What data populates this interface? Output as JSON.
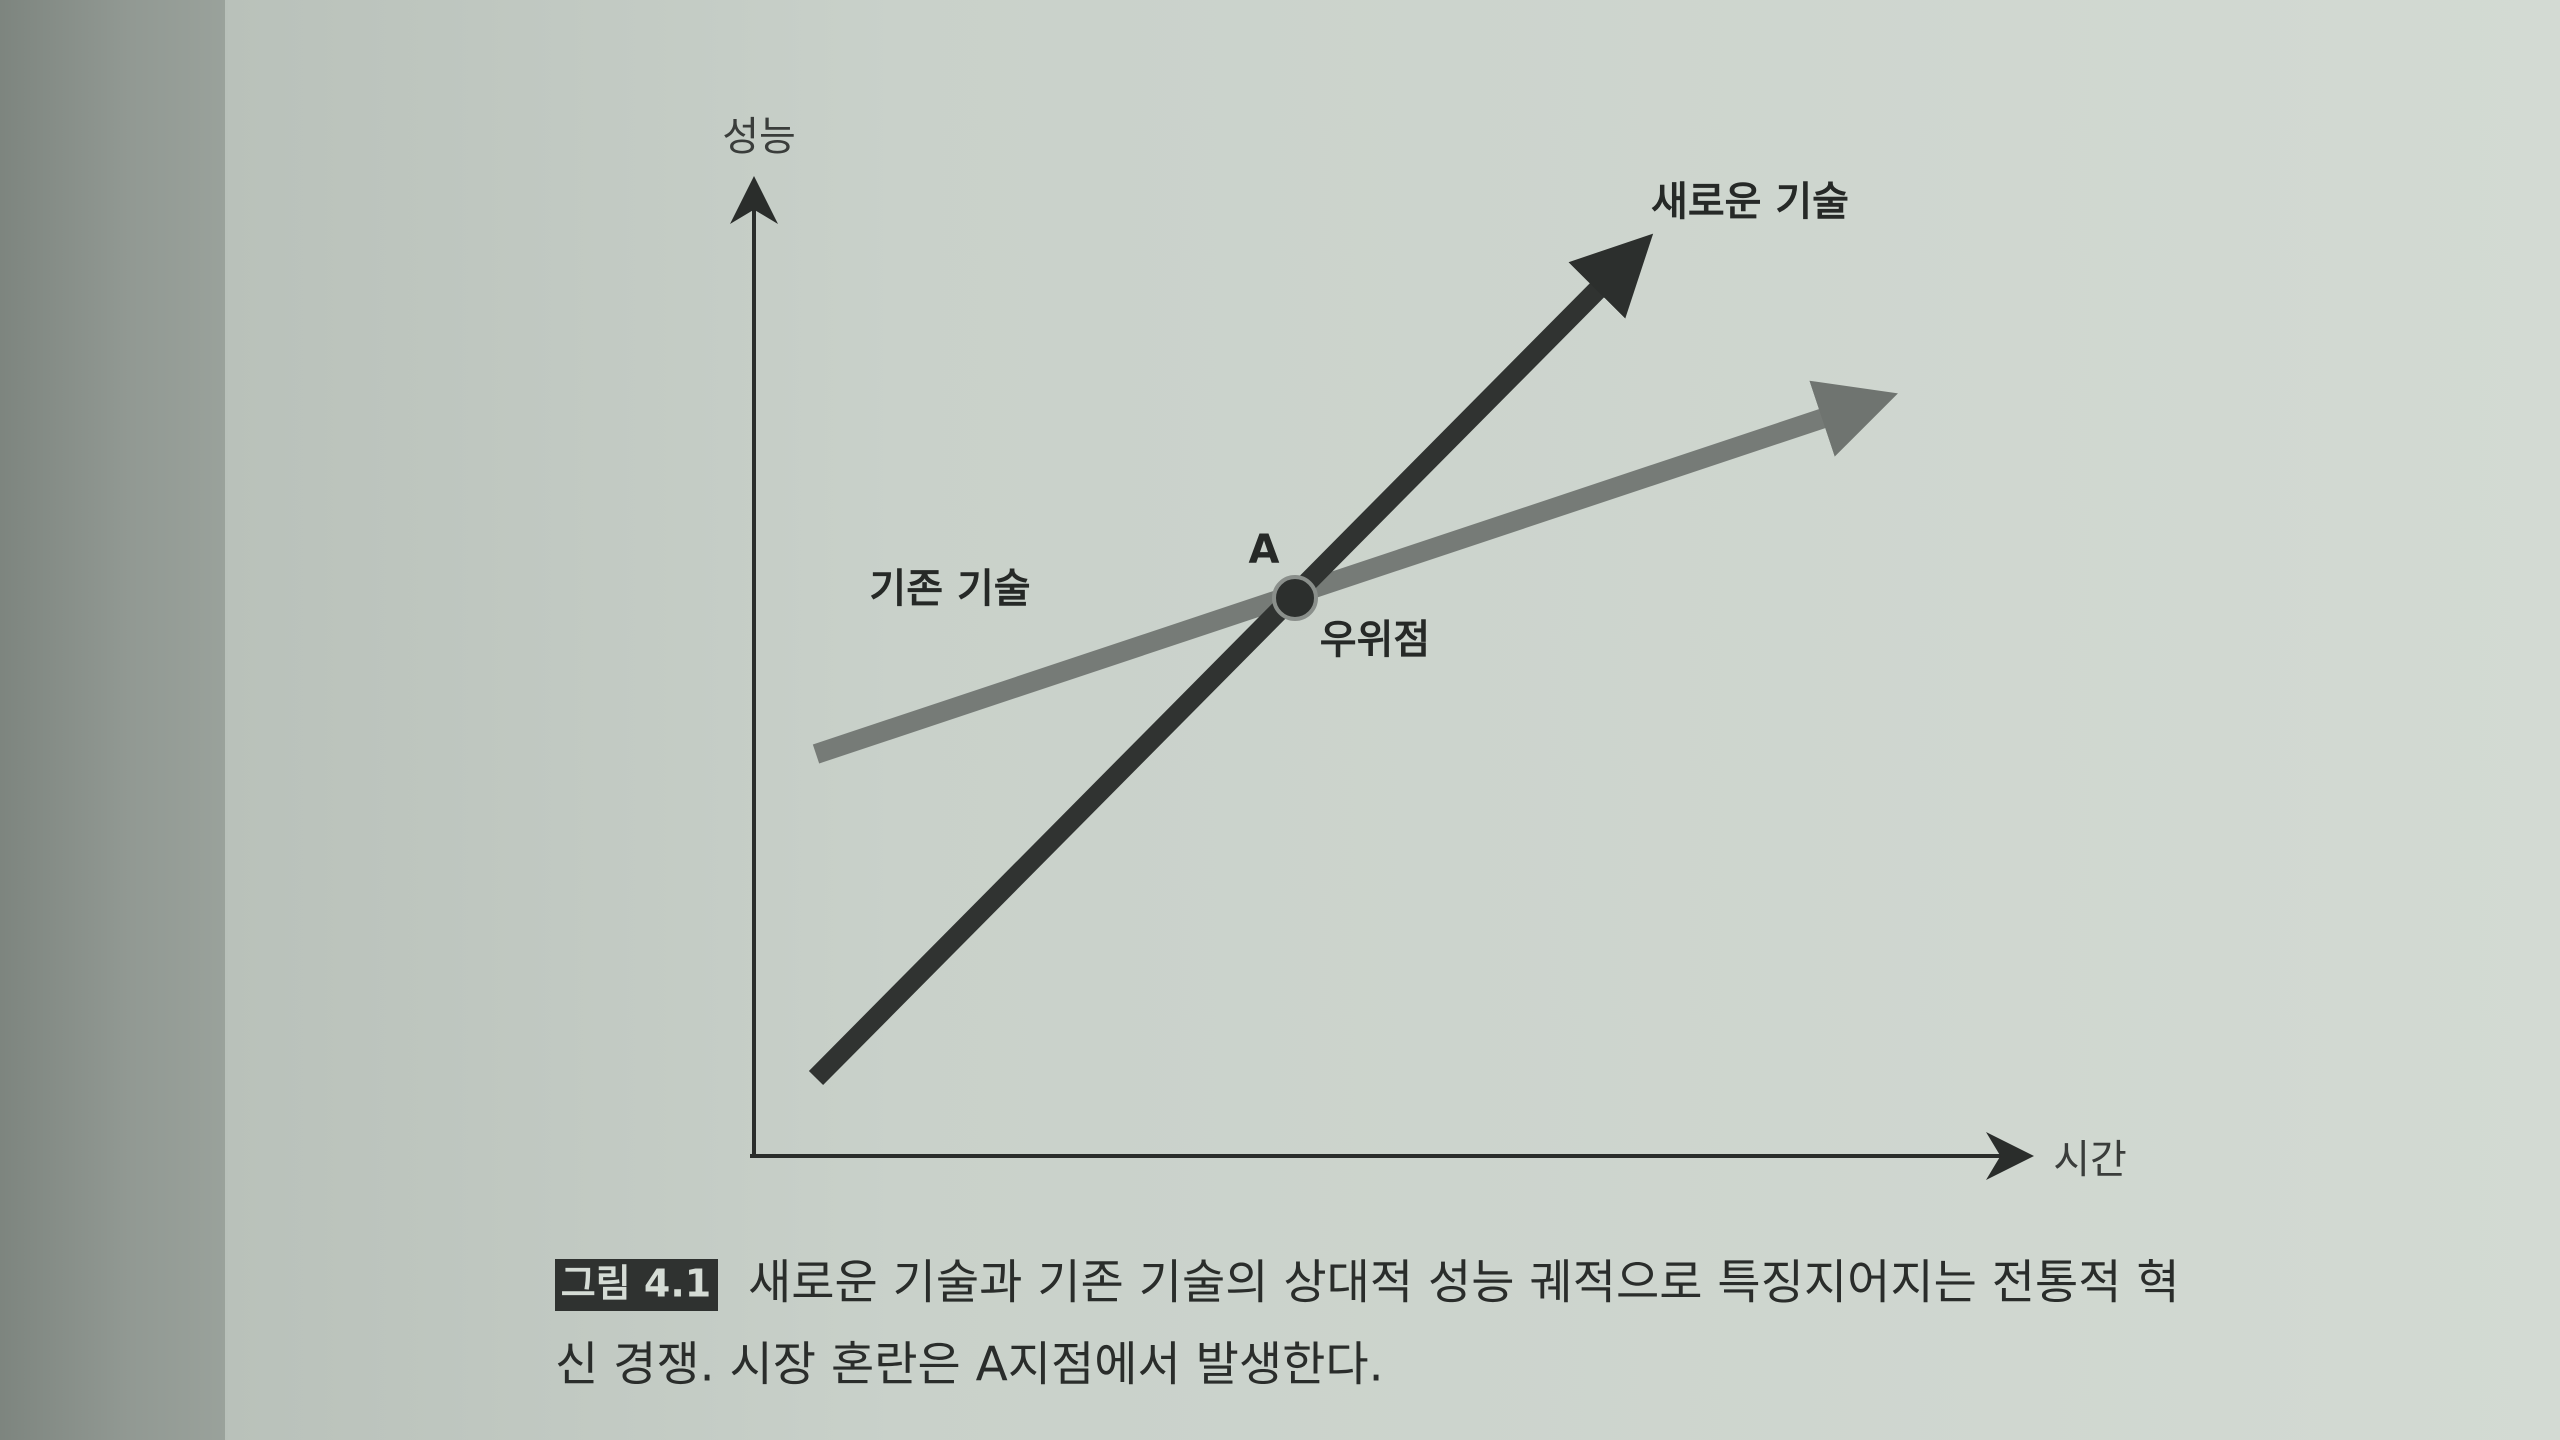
{
  "figure": {
    "y_axis_label": "성능",
    "x_axis_label": "시간",
    "lines": [
      {
        "label": "새로운 기술"
      },
      {
        "label": "기존 기술"
      }
    ],
    "point": {
      "label": "A",
      "note": "우위점"
    },
    "caption": {
      "label": "그림 4.1",
      "lines": [
        "새로운 기술과 기존 기술의 상대적 성능 궤적으로 특징지어지는 전통적 혁",
        "신 경쟁. 시장 혼란은 A지점에서 발생한다."
      ]
    }
  }
}
